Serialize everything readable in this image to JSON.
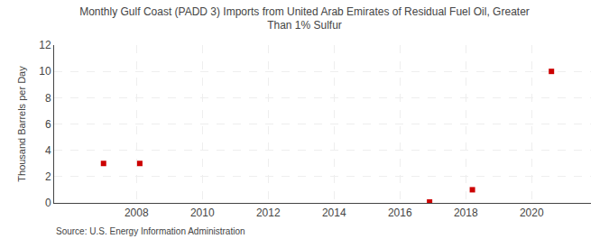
{
  "chart_data": {
    "type": "scatter",
    "title": "Monthly Gulf Coast (PADD 3) Imports from United Arab Emirates of Residual Fuel Oil, Greater\nThan 1% Sulfur",
    "ylabel": "Thousand Barrels per Day",
    "annotations": [
      "Source: U.S. Energy Information Administration"
    ],
    "x": [
      2007.0,
      2008.1,
      2016.9,
      2018.2,
      2020.6
    ],
    "values": [
      3.0,
      3.0,
      0.07,
      1.0,
      10.0
    ],
    "color": "#cc0000",
    "marker": "square",
    "xlim": [
      2005.5,
      2021.8
    ],
    "xticks": [
      2008,
      2010,
      2012,
      2014,
      2016,
      2018,
      2020
    ],
    "ylim": [
      0,
      12
    ],
    "yticks": [
      0,
      2,
      4,
      6,
      8,
      10,
      12
    ],
    "grid": true
  }
}
